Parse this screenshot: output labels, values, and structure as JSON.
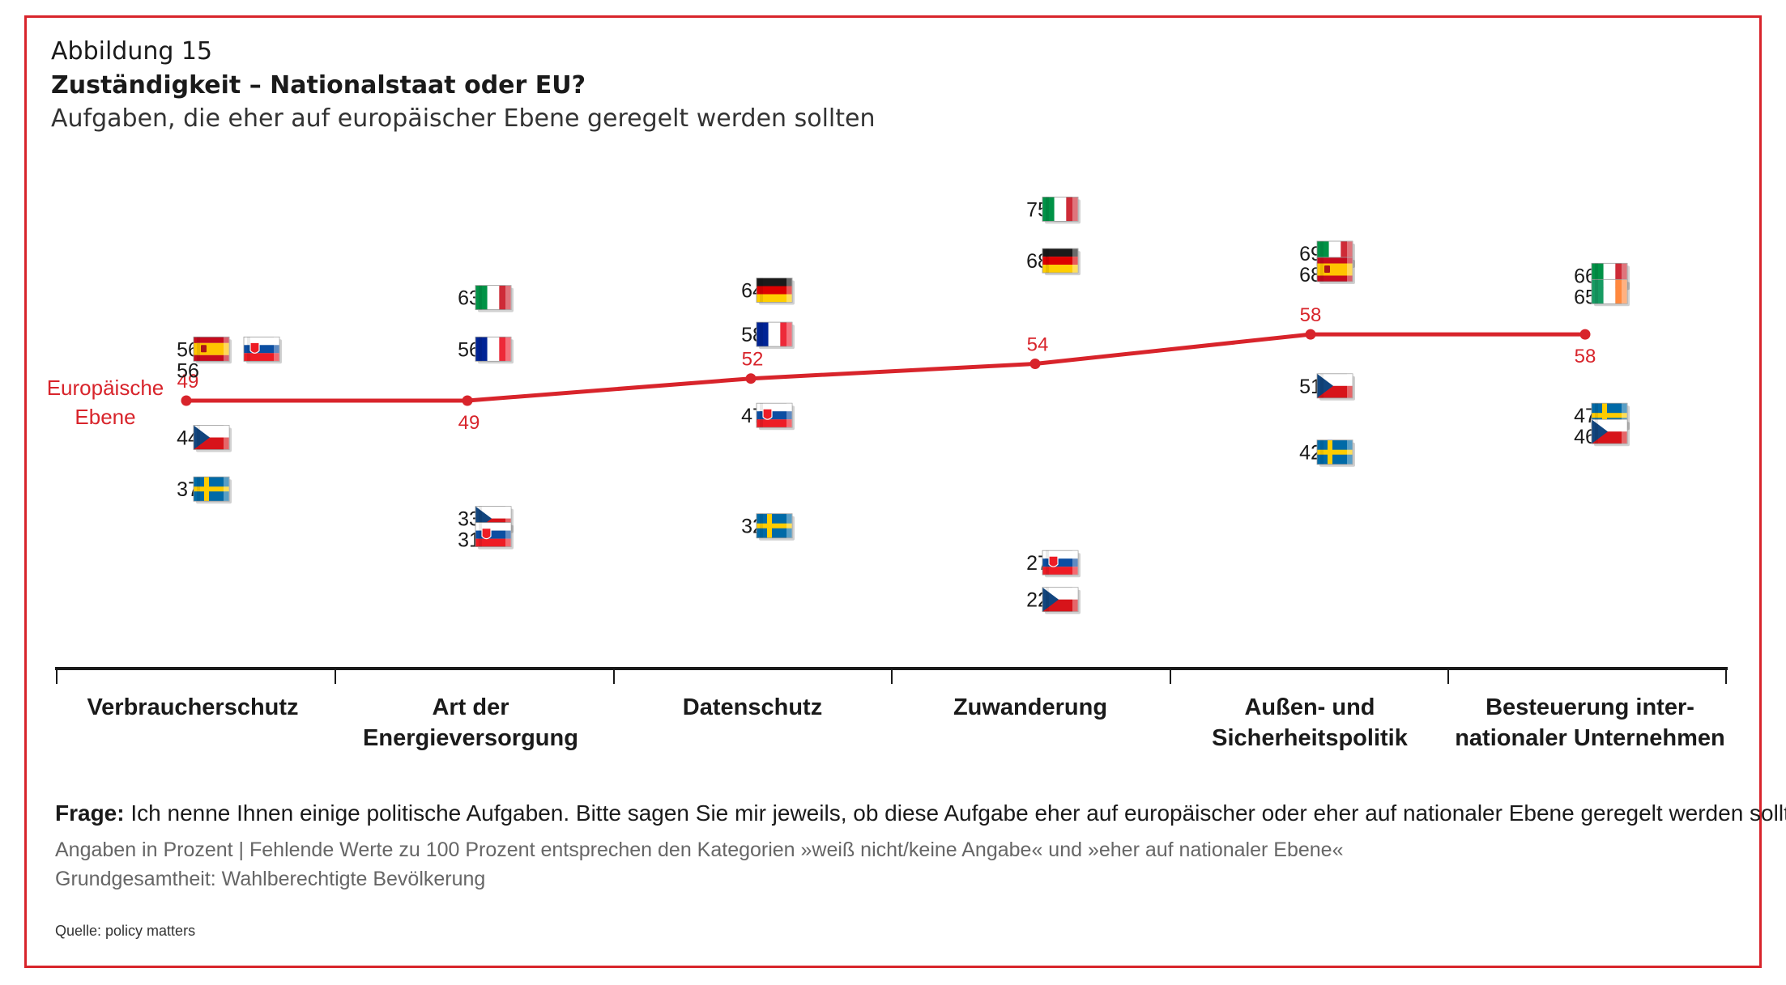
{
  "header": {
    "label": "Abbildung 15",
    "title": "Zuständigkeit – Nationalstaat oder EU?",
    "subtitle": "Aufgaben, die eher auf europäischer Ebene geregelt werden sollten"
  },
  "chart_data": {
    "type": "scatter",
    "categories": [
      [
        "Verbraucherschutz"
      ],
      [
        "Art der",
        "Energieversorgung"
      ],
      [
        "Datenschutz"
      ],
      [
        "Zuwanderung"
      ],
      [
        "Außen- und",
        "Sicherheitspolitik"
      ],
      [
        "Besteuerung inter-",
        "nationaler Unternehmen"
      ]
    ],
    "eu_line": {
      "label": [
        "Europäische",
        "Ebene"
      ],
      "values": [
        49,
        49,
        52,
        54,
        58,
        58
      ],
      "color": "#d8242b"
    },
    "country_values": [
      [
        {
          "country": "Spain",
          "value": 56,
          "flag": "spain-flag"
        },
        {
          "country": "Slovakia",
          "value": 56,
          "flag": "slovakia-flag"
        },
        {
          "country": "Czech Republic",
          "value": 44,
          "flag": "czech-flag"
        },
        {
          "country": "Sweden",
          "value": 37,
          "flag": "sweden-flag"
        }
      ],
      [
        {
          "country": "Italy",
          "value": 63,
          "flag": "italy-flag"
        },
        {
          "country": "France",
          "value": 56,
          "flag": "france-flag"
        },
        {
          "country": "Czech Republic",
          "value": 33,
          "flag": "czech-flag"
        },
        {
          "country": "Slovakia",
          "value": 31,
          "flag": "slovakia-flag"
        }
      ],
      [
        {
          "country": "Germany",
          "value": 64,
          "flag": "germany-flag"
        },
        {
          "country": "France",
          "value": 58,
          "flag": "france-flag"
        },
        {
          "country": "Slovakia",
          "value": 47,
          "flag": "slovakia-flag"
        },
        {
          "country": "Sweden",
          "value": 32,
          "flag": "sweden-flag"
        }
      ],
      [
        {
          "country": "Italy",
          "value": 75,
          "flag": "italy-flag"
        },
        {
          "country": "Germany",
          "value": 68,
          "flag": "germany-flag"
        },
        {
          "country": "Slovakia",
          "value": 27,
          "flag": "slovakia-flag"
        },
        {
          "country": "Czech Republic",
          "value": 22,
          "flag": "czech-flag"
        }
      ],
      [
        {
          "country": "Italy",
          "value": 69,
          "flag": "italy-flag"
        },
        {
          "country": "Spain",
          "value": 68,
          "flag": "spain-flag"
        },
        {
          "country": "Czech Republic",
          "value": 51,
          "flag": "czech-flag"
        },
        {
          "country": "Sweden",
          "value": 42,
          "flag": "sweden-flag"
        }
      ],
      [
        {
          "country": "Italy",
          "value": 66,
          "flag": "italy-flag"
        },
        {
          "country": "Ireland",
          "value": 65,
          "flag": "ireland-flag"
        },
        {
          "country": "Sweden",
          "value": 47,
          "flag": "sweden-flag"
        },
        {
          "country": "Czech Republic",
          "value": 46,
          "flag": "czech-flag"
        }
      ]
    ],
    "grid": false,
    "legend": "none"
  },
  "footer": {
    "question_label": "Frage:",
    "question": "Ich nenne Ihnen einige politische Aufgaben. Bitte sagen Sie mir jeweils, ob diese Aufgabe eher auf europäischer oder eher auf nationaler Ebene geregelt werden sollte.",
    "note1": "Angaben in Prozent | Fehlende Werte zu 100 Prozent entsprechen den Kategorien »weiß nicht/keine Angabe« und »eher auf nationaler Ebene«",
    "note2": "Grundgesamtheit: Wahlberechtigte Bevölkerung",
    "source": "Quelle: policy matters"
  }
}
